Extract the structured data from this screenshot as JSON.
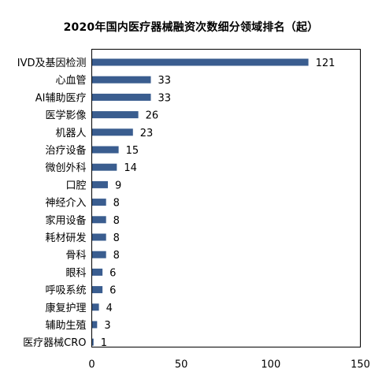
{
  "chart_data": {
    "type": "bar",
    "orientation": "horizontal",
    "title": "2020年国内医疗器械融资次数细分领域排名（起）",
    "categories": [
      "IVD及基因检测",
      "心血管",
      "AI辅助医疗",
      "医学影像",
      "机器人",
      "治疗设备",
      "微创外科",
      "口腔",
      "神经介入",
      "家用设备",
      "耗材研发",
      "骨科",
      "眼科",
      "呼吸系统",
      "康复护理",
      "辅助生殖",
      "医疗器械CRO"
    ],
    "values": [
      121,
      33,
      33,
      26,
      23,
      15,
      14,
      9,
      8,
      8,
      8,
      8,
      6,
      6,
      4,
      3,
      1
    ],
    "xlim": [
      0,
      150
    ],
    "xticks": [
      0,
      50,
      100,
      150
    ],
    "xlabel": "",
    "ylabel": "",
    "bar_color": "#3a5d8f",
    "grid": false,
    "legend": false,
    "data_labels": true
  }
}
